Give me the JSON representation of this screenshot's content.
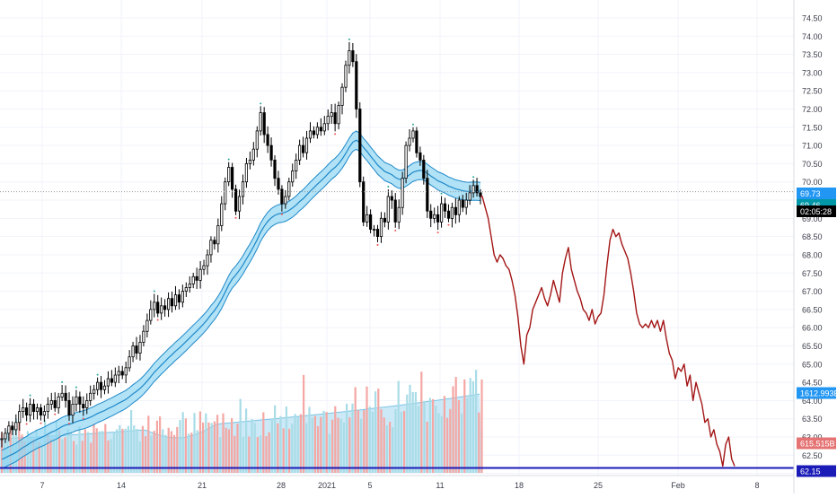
{
  "chart_data": {
    "type": "candlestick",
    "y_axis": {
      "ticks": [
        "74.50",
        "74.00",
        "73.50",
        "73.00",
        "72.50",
        "72.00",
        "71.50",
        "71.00",
        "70.50",
        "70.00",
        "69.50",
        "69.00",
        "68.50",
        "68.00",
        "67.50",
        "67.00",
        "66.50",
        "66.00",
        "65.50",
        "65.00",
        "64.50",
        "64.00",
        "63.50",
        "63.00",
        "62.50",
        "62.00"
      ],
      "ylim": [
        61.95,
        74.95
      ]
    },
    "x_axis": {
      "ticks": [
        "7",
        "14",
        "21",
        "28",
        "2021",
        "5",
        "11",
        "18",
        "25",
        "Feb",
        "8"
      ]
    },
    "price_series": [
      [
        62.95,
        63.1,
        63.3,
        63.2,
        63.4,
        63.7,
        63.8,
        63.6,
        63.9,
        63.7,
        63.8,
        63.6,
        63.7,
        63.9,
        64.0,
        63.8,
        64.1,
        64.2,
        64.0,
        63.6,
        63.9,
        64.1,
        63.9,
        63.8,
        64.0,
        64.2,
        64.3,
        64.5,
        64.3,
        64.4,
        64.6,
        64.5,
        64.7,
        64.8,
        64.7,
        64.9,
        65.2,
        65.5,
        65.3,
        65.6,
        65.9,
        66.2,
        66.5,
        66.7,
        66.4,
        66.6,
        66.5,
        66.8,
        66.6,
        66.9,
        66.7,
        67.0,
        67.1,
        67.2,
        67.4,
        67.3,
        67.6,
        67.7,
        68.0,
        68.4,
        68.3,
        68.8,
        69.4,
        70.0,
        70.4,
        69.8,
        69.2,
        69.6,
        70.0,
        70.5,
        70.6,
        70.9,
        71.4,
        71.9,
        71.3,
        71.0,
        70.6,
        70.1,
        69.8,
        69.4,
        69.6,
        70.0,
        70.3,
        70.6,
        71.0,
        70.8,
        71.2,
        71.4,
        71.3,
        71.5,
        71.4,
        71.6,
        71.8,
        71.9,
        71.6,
        72.1,
        72.6,
        73.2,
        73.6,
        73.3,
        72.0,
        70.0,
        68.9,
        69.1,
        68.7,
        68.7,
        68.5,
        69.0,
        68.9,
        69.6,
        69.5,
        68.9,
        69.3,
        70.1,
        71.0,
        71.2,
        71.4,
        70.8,
        70.6,
        70.1,
        69.2,
        69.0,
        69.1,
        68.9,
        69.4,
        69.2,
        69.0,
        69.3,
        69.1,
        69.5,
        69.3,
        69.5,
        69.7,
        69.9,
        69.7,
        69.6
      ],
      [
        69.6,
        69.3,
        69.0,
        68.5,
        68.0,
        67.8,
        68.0,
        67.9,
        67.7,
        67.6,
        67.3,
        66.9,
        66.3,
        65.5,
        65.0,
        65.8,
        66.0,
        66.5,
        66.7,
        66.9,
        67.1,
        66.8,
        66.6,
        66.9,
        67.3,
        67.0,
        66.7,
        67.5,
        67.9,
        68.2,
        67.6,
        67.3,
        67.0,
        66.8,
        66.5,
        66.4,
        66.2,
        66.5,
        66.1,
        66.3,
        66.4,
        66.9,
        67.7,
        68.4,
        68.7,
        68.5,
        68.6,
        68.3,
        68.1,
        67.9,
        67.5,
        67.0,
        66.4,
        66.1,
        66.0,
        66.1,
        66.0,
        66.2,
        66.0,
        66.2,
        65.9,
        66.2,
        65.7,
        65.3,
        65.1,
        64.6,
        64.9,
        64.8,
        65.0,
        64.4,
        64.7,
        64.0,
        64.5,
        64.2,
        63.9,
        63.4,
        63.5,
        63.0,
        63.2,
        62.8,
        62.6,
        62.2,
        62.8,
        63.0,
        62.4,
        62.2
      ]
    ],
    "price_lines": [
      {
        "label": "69.73",
        "value": 69.73,
        "color": "#2196F3"
      },
      {
        "label": "69.46",
        "value": 69.46,
        "color": "#0097A7"
      },
      {
        "label": "02:05:28",
        "value": 69.2,
        "color": "#000000"
      },
      {
        "label": "62.15",
        "value": 62.15,
        "color": "#1B1BB8"
      }
    ],
    "volume_labels": [
      {
        "label": "1612.993B",
        "color": "#2196F3"
      },
      {
        "label": "615.515B",
        "color": "#E57373"
      }
    ],
    "colors": {
      "background": "#ffffff",
      "grid": "#F0F3FA",
      "bull": "#26A69A",
      "bear": "#EF5350",
      "candle": "#000000",
      "forecast": "#A31515",
      "band_line": "#1E88C8",
      "band_fill": "#90D5F2",
      "volume_up": "#A8DCE7",
      "volume_down": "#F4A7A3",
      "volume_area": "#BFE4F5",
      "baseline": "#1B1BB8"
    }
  }
}
